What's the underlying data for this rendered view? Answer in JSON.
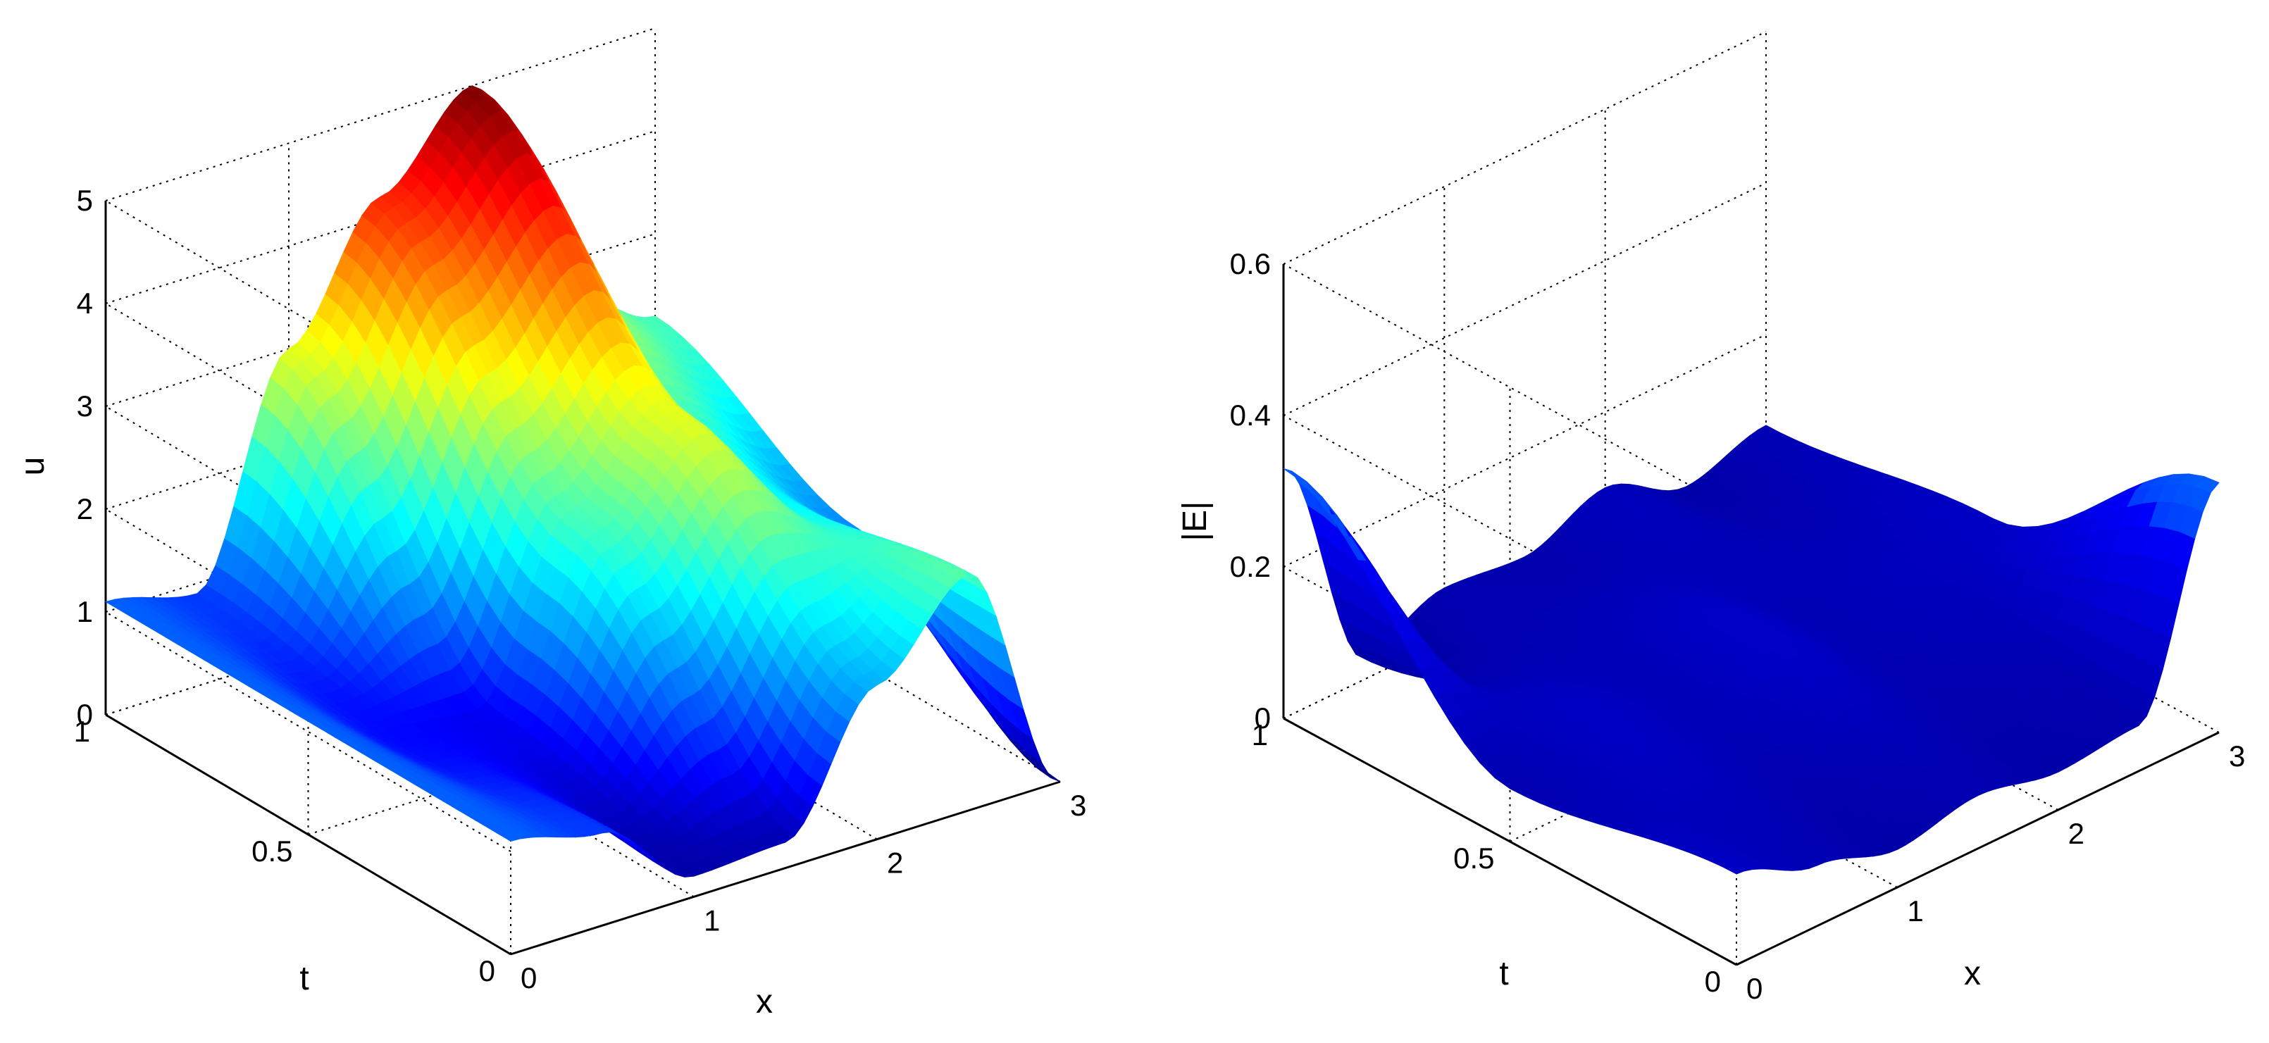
{
  "chart_data": [
    {
      "type": "surface",
      "title": "",
      "xlabel": "x",
      "ylabel": "t",
      "zlabel": "u",
      "xlim": [
        0,
        3
      ],
      "ylim": [
        0,
        1
      ],
      "zlim": [
        0,
        5
      ],
      "x_ticks": [
        "0",
        "1",
        "2",
        "3"
      ],
      "y_ticks": [
        "0",
        "0.5",
        "1"
      ],
      "z_ticks": [
        "0",
        "1",
        "2",
        "3",
        "4",
        "5"
      ],
      "grid": true,
      "colormap": "jet",
      "colors": [
        "#00008f",
        "#0000ff",
        "#00ffff",
        "#ffff00",
        "#ff0000",
        "#800000"
      ],
      "samples": {
        "x": [
          0,
          0.5,
          1,
          1.5,
          2,
          2.5,
          3
        ],
        "t": [
          0,
          0.5,
          1
        ],
        "u": [
          [
            1.1,
            0.9,
            0.2,
            0.25,
            1.5,
            2.3,
            0.0
          ],
          [
            1.1,
            0.65,
            0.55,
            2.2,
            3.0,
            1.9,
            1.3
          ],
          [
            1.1,
            0.9,
            3.0,
            4.2,
            5.0,
            2.7,
            2.2
          ]
        ]
      }
    },
    {
      "type": "surface",
      "title": "",
      "xlabel": "x",
      "ylabel": "t",
      "zlabel": "|E|",
      "xlim": [
        0,
        3
      ],
      "ylim": [
        0,
        1
      ],
      "zlim": [
        0,
        0.6
      ],
      "x_ticks": [
        "0",
        "1",
        "2",
        "3"
      ],
      "y_ticks": [
        "0",
        "0.5",
        "1"
      ],
      "z_ticks": [
        "0",
        "0.2",
        "0.4",
        "0.6"
      ],
      "grid": true,
      "colormap": "jet",
      "colors": [
        "#00008f",
        "#0000ff",
        "#00ffff"
      ],
      "samples": {
        "x": [
          0,
          0.5,
          1,
          1.5,
          2,
          2.5,
          3
        ],
        "t": [
          0,
          0.5,
          1
        ],
        "E": [
          [
            0.12,
            0.08,
            0.05,
            0.07,
            0.05,
            0.06,
            0.33
          ],
          [
            0.07,
            0.12,
            0.09,
            0.13,
            0.08,
            0.1,
            0.12
          ],
          [
            0.33,
            0.03,
            0.07,
            0.06,
            0.1,
            0.05,
            0.08
          ]
        ]
      }
    }
  ]
}
